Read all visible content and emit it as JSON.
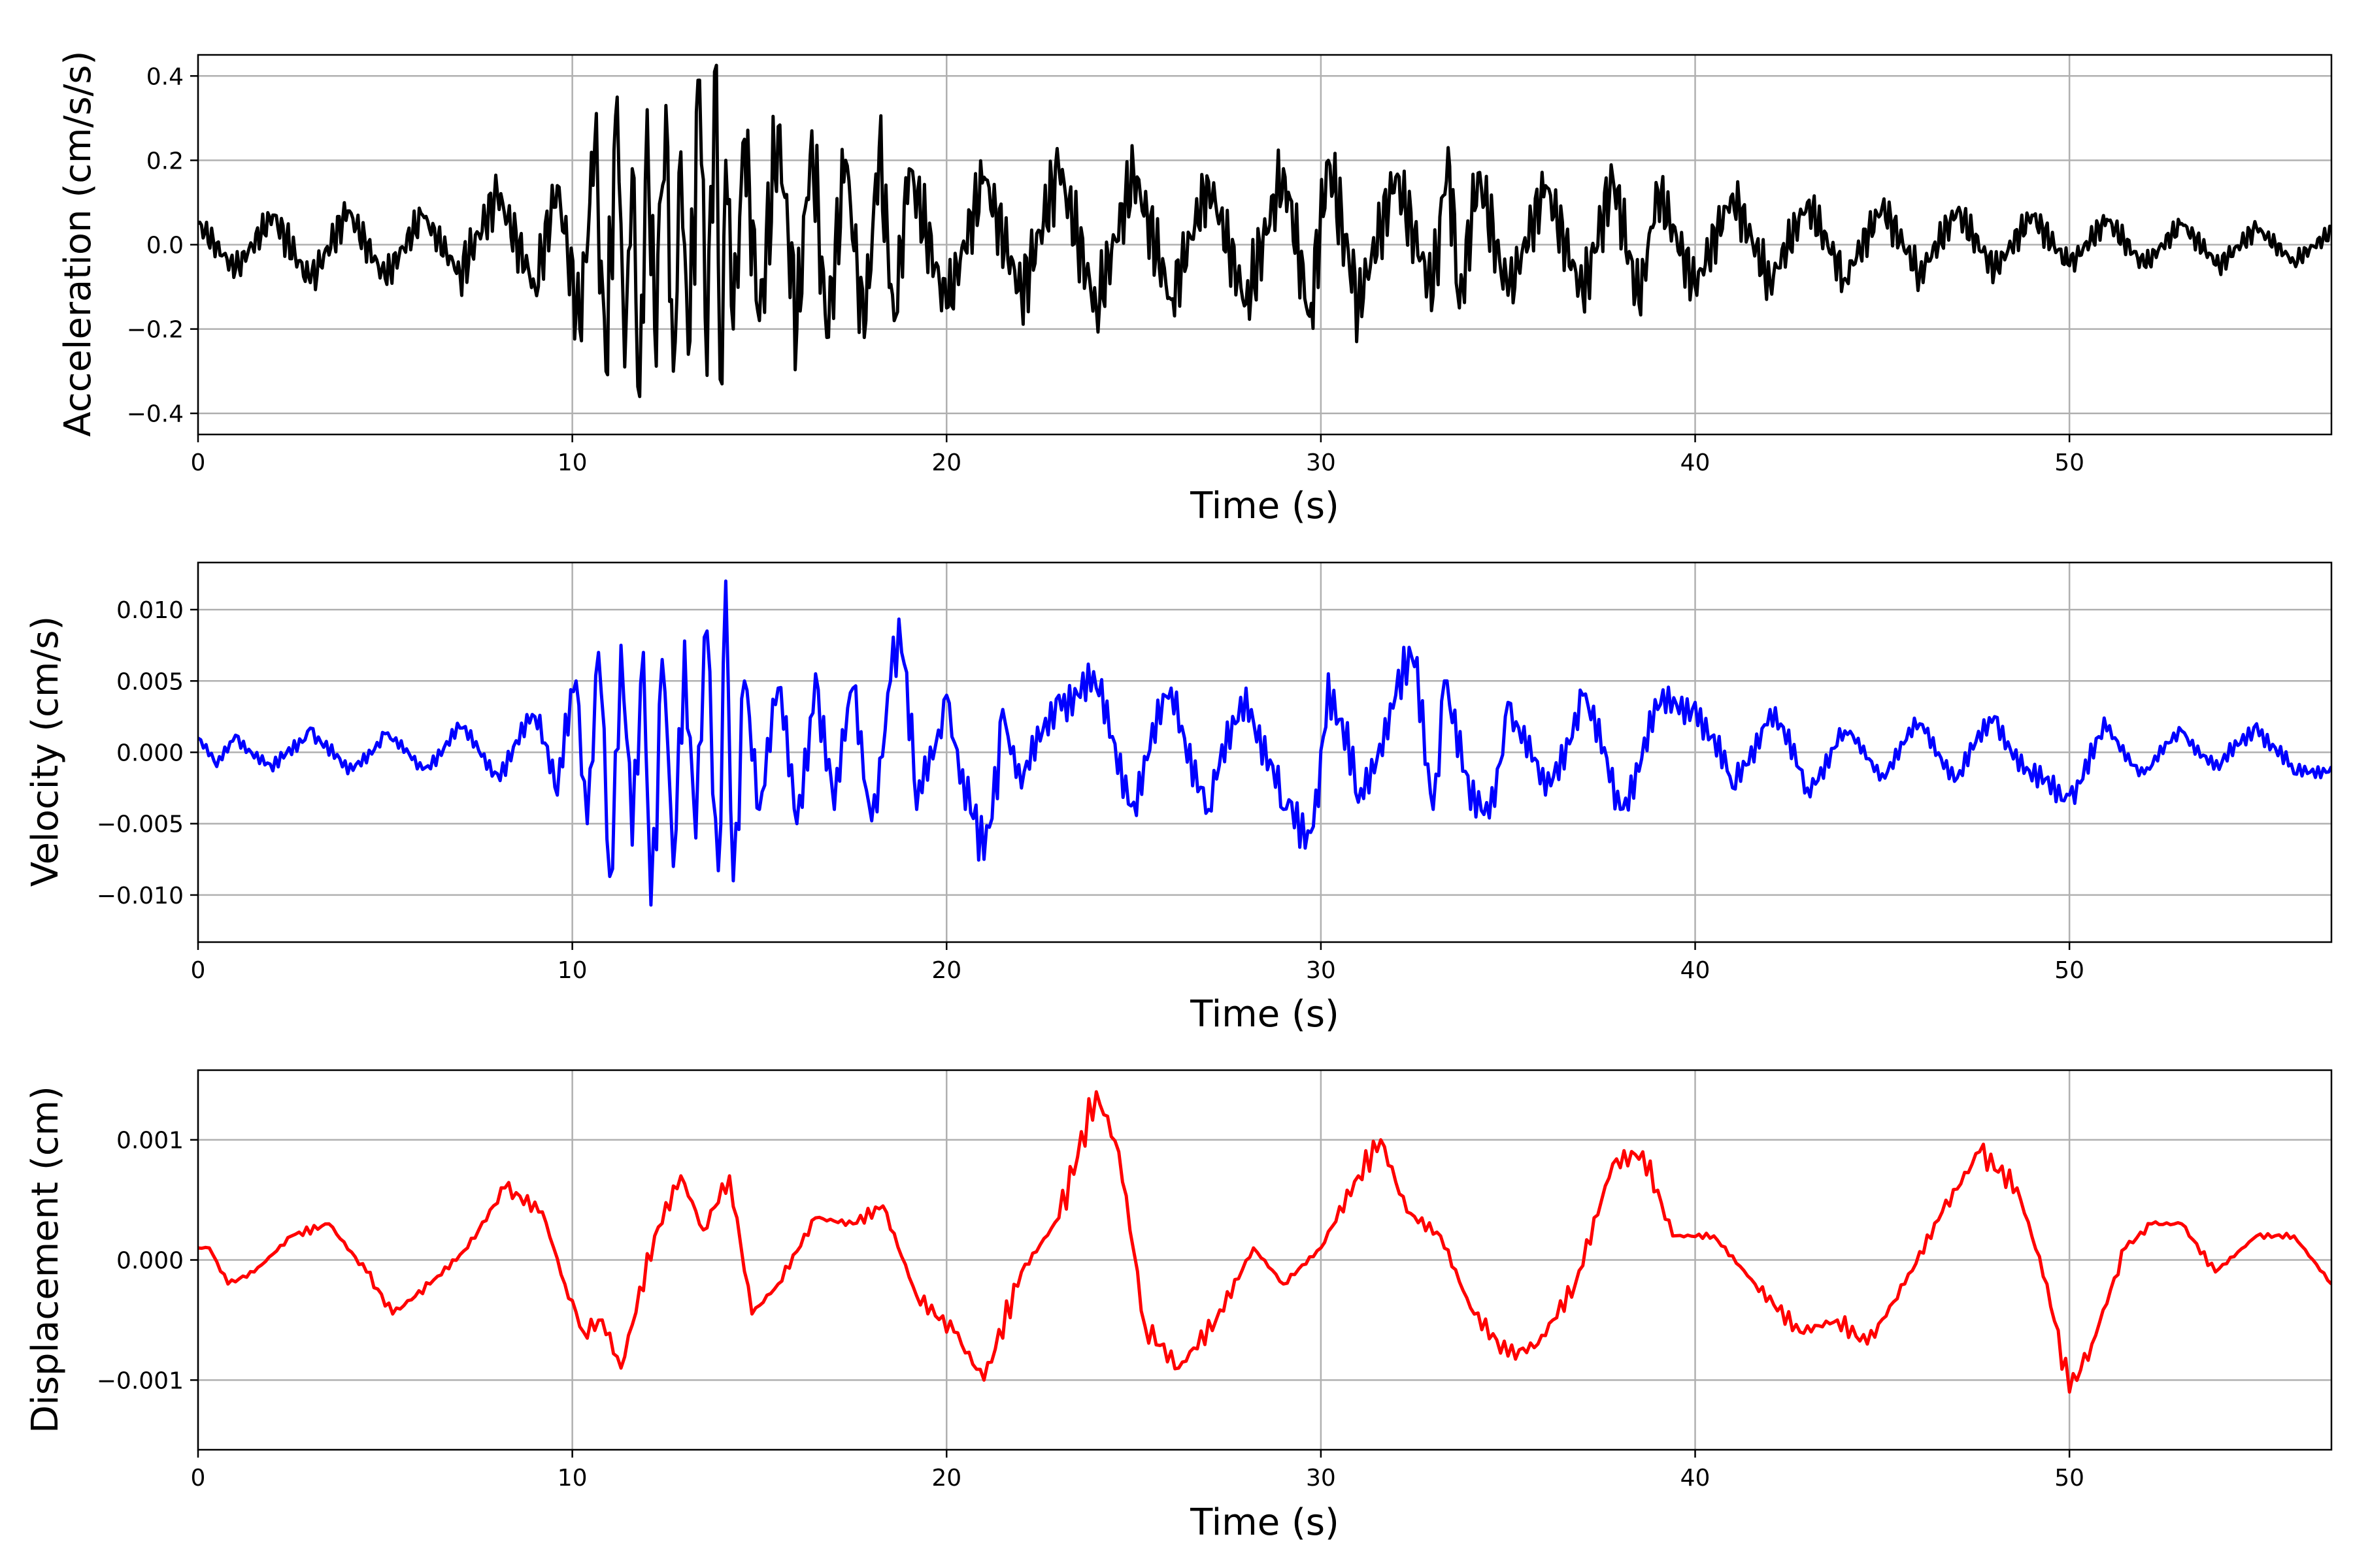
{
  "figure": {
    "charts": [
      {
        "id": "acceleration",
        "ylabel": "Acceleration (cm/s/s)",
        "xlabel": "Time (s)"
      },
      {
        "id": "velocity",
        "ylabel": "Velocity (cm/s)",
        "xlabel": "Time (s)"
      },
      {
        "id": "displacement",
        "ylabel": "Displacement (cm)",
        "xlabel": "Time (s)"
      }
    ]
  },
  "chart_data": [
    {
      "type": "line",
      "title": "",
      "xlabel": "Time (s)",
      "ylabel": "Acceleration (cm/s/s)",
      "xlim": [
        0,
        57
      ],
      "ylim": [
        -0.45,
        0.45
      ],
      "xticks": [
        0,
        10,
        20,
        30,
        40,
        50
      ],
      "xtick_labels": [
        "0",
        "10",
        "20",
        "30",
        "40",
        "50"
      ],
      "yticks": [
        -0.4,
        -0.2,
        0.0,
        0.2,
        0.4
      ],
      "ytick_labels": [
        "−0.4",
        "−0.2",
        "0.0",
        "0.2",
        "0.4"
      ],
      "grid": true,
      "line_color": "#000000",
      "series": [
        {
          "x": [
            0,
            1,
            2,
            3,
            4,
            5,
            6,
            7,
            8,
            9,
            9.6,
            10.2,
            10.6,
            10.9,
            11.2,
            11.4,
            11.6,
            11.8,
            12.0,
            12.2,
            12.5,
            12.7,
            12.9,
            13.1,
            13.4,
            13.6,
            13.8,
            14.0,
            14.1,
            14.3,
            14.6,
            15.0,
            15.5,
            16.0,
            16.4,
            16.8,
            17.3,
            17.8,
            18.2,
            18.6,
            19.0,
            20,
            21,
            22,
            23,
            24,
            25,
            26,
            27,
            28,
            29,
            29.7,
            30.2,
            31,
            32,
            33,
            33.4,
            33.7,
            34.2,
            35,
            36,
            37,
            37.8,
            38.5,
            39,
            40,
            41,
            42,
            43,
            44,
            45,
            46,
            47,
            48,
            49,
            50,
            51,
            52,
            53,
            54,
            55,
            56,
            57
          ],
          "y": [
            0.05,
            -0.06,
            0.07,
            -0.09,
            0.08,
            -0.08,
            0.07,
            -0.07,
            0.12,
            -0.1,
            0.14,
            -0.2,
            0.24,
            -0.3,
            0.35,
            -0.29,
            0.18,
            -0.36,
            0.32,
            -0.2,
            0.33,
            -0.3,
            0.22,
            -0.26,
            0.39,
            -0.31,
            0.41,
            -0.33,
            0.2,
            -0.2,
            0.25,
            -0.18,
            0.28,
            -0.2,
            0.27,
            -0.22,
            0.2,
            -0.22,
            0.23,
            -0.18,
            0.18,
            -0.15,
            0.16,
            -0.12,
            0.18,
            -0.15,
            0.17,
            -0.13,
            0.15,
            -0.14,
            0.18,
            -0.17,
            0.2,
            -0.14,
            0.16,
            -0.12,
            0.23,
            -0.15,
            0.17,
            -0.12,
            0.14,
            -0.12,
            0.16,
            -0.14,
            0.13,
            -0.1,
            0.12,
            -0.09,
            0.1,
            -0.08,
            0.09,
            -0.07,
            0.08,
            -0.06,
            0.07,
            -0.05,
            0.06,
            -0.05,
            0.05,
            -0.05,
            0.04,
            -0.04,
            0.03
          ]
        }
      ]
    },
    {
      "type": "line",
      "title": "",
      "xlabel": "Time (s)",
      "ylabel": "Velocity (cm/s)",
      "xlim": [
        0,
        57
      ],
      "ylim": [
        -0.0133,
        0.0133
      ],
      "xticks": [
        0,
        10,
        20,
        30,
        40,
        50
      ],
      "xtick_labels": [
        "0",
        "10",
        "20",
        "30",
        "40",
        "50"
      ],
      "yticks": [
        -0.01,
        -0.005,
        0.0,
        0.005,
        0.01
      ],
      "ytick_labels": [
        "−0.010",
        "−0.005",
        "0.000",
        "0.005",
        "0.010"
      ],
      "grid": true,
      "line_color": "#0000ff",
      "series": [
        {
          "x": [
            0,
            0.5,
            1,
            2,
            3,
            4,
            5,
            6,
            7,
            8,
            9,
            9.6,
            10.1,
            10.4,
            10.7,
            11.0,
            11.3,
            11.6,
            11.9,
            12.1,
            12.4,
            12.7,
            13.0,
            13.3,
            13.6,
            13.9,
            14.1,
            14.3,
            14.6,
            15,
            15.5,
            16,
            16.5,
            17,
            17.5,
            18,
            18.5,
            18.8,
            19.2,
            20,
            20.5,
            21,
            21.5,
            22,
            23,
            24,
            25,
            26,
            27,
            28,
            29,
            29.8,
            30.2,
            31,
            32,
            32.5,
            33,
            33.3,
            34,
            34.5,
            35,
            36,
            37,
            38,
            39,
            40,
            41,
            42,
            43,
            44,
            45,
            46,
            47,
            48,
            49,
            50,
            51,
            52,
            53,
            54,
            55,
            56,
            57
          ],
          "y": [
            0.001,
            -0.001,
            0.0012,
            -0.0013,
            0.0017,
            -0.0015,
            0.0013,
            -0.0012,
            0.0017,
            -0.0015,
            0.0025,
            -0.003,
            0.005,
            -0.005,
            0.007,
            -0.0087,
            0.0075,
            -0.0065,
            0.007,
            -0.0107,
            0.0065,
            -0.008,
            0.0078,
            -0.006,
            0.0085,
            -0.0083,
            0.012,
            -0.009,
            0.005,
            -0.004,
            0.0045,
            -0.005,
            0.0055,
            -0.004,
            0.0045,
            -0.0048,
            0.005,
            0.007,
            -0.004,
            0.004,
            -0.004,
            -0.0075,
            0.003,
            -0.0025,
            0.004,
            0.0045,
            -0.0035,
            0.0045,
            -0.004,
            0.0045,
            -0.004,
            -0.0052,
            0.0055,
            -0.0035,
            0.004,
            0.006,
            -0.004,
            0.005,
            -0.004,
            -0.0046,
            0.0035,
            -0.003,
            0.004,
            -0.004,
            0.003,
            0.0035,
            -0.0025,
            0.003,
            -0.0025,
            0.0015,
            -0.0015,
            0.002,
            -0.0018,
            0.0025,
            -0.002,
            -0.003,
            0.0015,
            -0.0015,
            0.0015,
            -0.0012,
            0.002,
            -0.0015,
            -0.001
          ]
        }
      ]
    },
    {
      "type": "line",
      "title": "",
      "xlabel": "Time (s)",
      "ylabel": "Displacement (cm)",
      "xlim": [
        0,
        57
      ],
      "ylim": [
        -0.00158,
        0.00158
      ],
      "xticks": [
        0,
        10,
        20,
        30,
        40,
        50
      ],
      "xtick_labels": [
        "0",
        "10",
        "20",
        "30",
        "40",
        "50"
      ],
      "yticks": [
        -0.001,
        0.0,
        0.001
      ],
      "ytick_labels": [
        "−0.001",
        "0.000",
        "0.001"
      ],
      "grid": true,
      "line_color": "#ff0000",
      "series": [
        {
          "x": [
            0,
            0.3,
            0.8,
            1.5,
            2.5,
            3.5,
            4.5,
            5.2,
            6.2,
            7.2,
            8.2,
            9.2,
            9.8,
            10.3,
            10.8,
            11.3,
            12.2,
            12.9,
            13.5,
            14.2,
            14.8,
            15.5,
            16.5,
            17.5,
            18.3,
            19.2,
            20.2,
            21.0,
            22.0,
            23.0,
            24.0,
            24.6,
            25.3,
            26.2,
            27.2,
            28.2,
            29.0,
            30.0,
            31.0,
            31.6,
            32.3,
            33.2,
            34.0,
            35.0,
            35.8,
            36.8,
            37.8,
            38.6,
            39.4,
            40.5,
            41.6,
            42.8,
            43.8,
            44.6,
            45.6,
            46.6,
            47.6,
            48.6,
            49.4,
            50.0,
            50.6,
            51.5,
            52.2,
            53.0,
            53.9,
            55.0,
            56.0,
            57.0
          ],
          "y": [
            0.0001,
            0.0001,
            -0.0002,
            -0.0001,
            0.0002,
            0.0003,
            -0.0001,
            -0.00045,
            -0.0002,
            0.0001,
            0.0006,
            0.0004,
            -0.0002,
            -0.0006,
            -0.0005,
            -0.0009,
            0.0002,
            0.0007,
            0.00025,
            0.0007,
            -0.00045,
            -0.0002,
            0.00035,
            0.0003,
            0.00045,
            -0.0003,
            -0.0006,
            -0.001,
            -0.0001,
            0.00035,
            0.0014,
            0.0009,
            -0.00055,
            -0.0009,
            -0.0005,
            0.0001,
            -0.0002,
            0.0001,
            0.0007,
            0.001,
            0.0004,
            0.0002,
            -0.0004,
            -0.0008,
            -0.0007,
            -0.0002,
            0.0008,
            0.0009,
            0.0002,
            0.0002,
            -0.0002,
            -0.0006,
            -0.0005,
            -0.0007,
            -0.0002,
            0.0004,
            0.0009,
            0.0006,
            -0.0002,
            -0.0011,
            -0.0007,
            0.0001,
            0.0003,
            0.0003,
            -0.0001,
            0.0002,
            0.0002,
            -0.0002
          ]
        }
      ]
    }
  ]
}
